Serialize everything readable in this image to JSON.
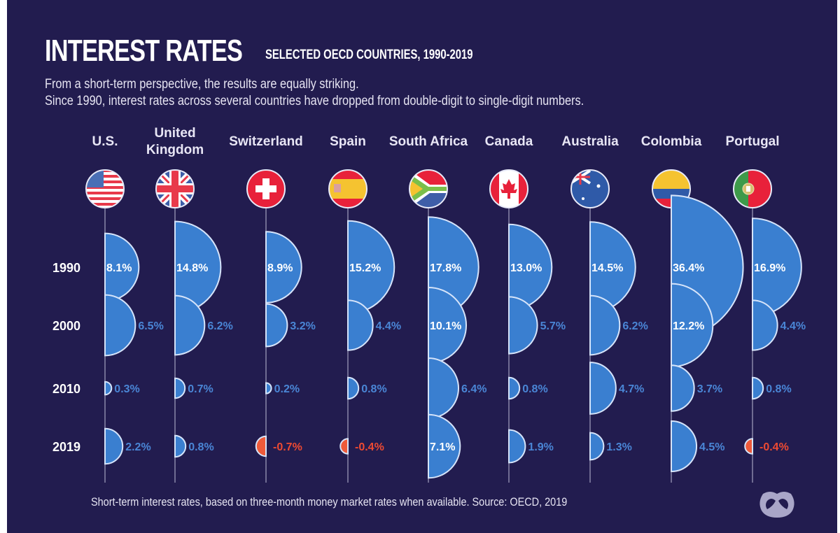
{
  "header": {
    "title": "INTEREST RATES",
    "subtitle": "SELECTED OECD COUNTRIES, 1990-2019",
    "description_line1": "From a short-term perspective, the results are equally striking.",
    "description_line2": "Since 1990, interest rates across several countries have dropped from double-digit to single-digit numbers."
  },
  "footer": {
    "note": "Short-term interest rates, based on three-month money market rates when available. Source: OECD, 2019",
    "logo_icon": "visual-capitalist-logo-icon"
  },
  "colors": {
    "background": "#221c4f",
    "positive": "#3a7fd0",
    "negative": "#ee5a3a",
    "outline": "#d6e4fa",
    "positive_label": "#4a86d6",
    "negative_label": "#ee4a32"
  },
  "chart_data": {
    "type": "semicircle-bubble",
    "title": "INTEREST RATES",
    "subtitle": "SELECTED OECD COUNTRIES, 1990-2019",
    "unit": "%",
    "years": [
      "1990",
      "2000",
      "2010",
      "2019"
    ],
    "countries": [
      {
        "name": "U.S.",
        "label_lines": [
          "U.S."
        ],
        "flag": "us-flag-icon",
        "values": [
          8.1,
          6.5,
          0.3,
          2.2
        ],
        "labels": [
          "8.1%",
          "6.5%",
          "0.3%",
          "2.2%"
        ]
      },
      {
        "name": "United Kingdom",
        "label_lines": [
          "United",
          "Kingdom"
        ],
        "flag": "uk-flag-icon",
        "values": [
          14.8,
          6.2,
          0.7,
          0.8
        ],
        "labels": [
          "14.8%",
          "6.2%",
          "0.7%",
          "0.8%"
        ]
      },
      {
        "name": "Switzerland",
        "label_lines": [
          "Switzerland"
        ],
        "flag": "switzerland-flag-icon",
        "values": [
          8.9,
          3.2,
          0.2,
          -0.7
        ],
        "labels": [
          "8.9%",
          "3.2%",
          "0.2%",
          "-0.7%"
        ]
      },
      {
        "name": "Spain",
        "label_lines": [
          "Spain"
        ],
        "flag": "spain-flag-icon",
        "values": [
          15.2,
          4.4,
          0.8,
          -0.4
        ],
        "labels": [
          "15.2%",
          "4.4%",
          "0.8%",
          "-0.4%"
        ]
      },
      {
        "name": "South Africa",
        "label_lines": [
          "South Africa"
        ],
        "flag": "south-africa-flag-icon",
        "values": [
          17.8,
          10.1,
          6.4,
          7.1
        ],
        "labels": [
          "17.8%",
          "10.1%",
          "6.4%",
          "7.1%"
        ]
      },
      {
        "name": "Canada",
        "label_lines": [
          "Canada"
        ],
        "flag": "canada-flag-icon",
        "values": [
          13.0,
          5.7,
          0.8,
          1.9
        ],
        "labels": [
          "13.0%",
          "5.7%",
          "0.8%",
          "1.9%"
        ]
      },
      {
        "name": "Australia",
        "label_lines": [
          "Australia"
        ],
        "flag": "australia-flag-icon",
        "values": [
          14.5,
          6.2,
          4.7,
          1.3
        ],
        "labels": [
          "14.5%",
          "6.2%",
          "4.7%",
          "1.3%"
        ]
      },
      {
        "name": "Colombia",
        "label_lines": [
          "Colombia"
        ],
        "flag": "colombia-flag-icon",
        "values": [
          36.4,
          12.2,
          3.7,
          4.5
        ],
        "labels": [
          "36.4%",
          "12.2%",
          "3.7%",
          "4.5%"
        ]
      },
      {
        "name": "Portugal",
        "label_lines": [
          "Portugal"
        ],
        "flag": "portugal-flag-icon",
        "values": [
          16.9,
          4.4,
          0.8,
          -0.4
        ],
        "labels": [
          "16.9%",
          "4.4%",
          "0.8%",
          "-0.4%"
        ]
      }
    ],
    "label_inside_threshold": 7.0,
    "source": "OECD, 2019"
  }
}
